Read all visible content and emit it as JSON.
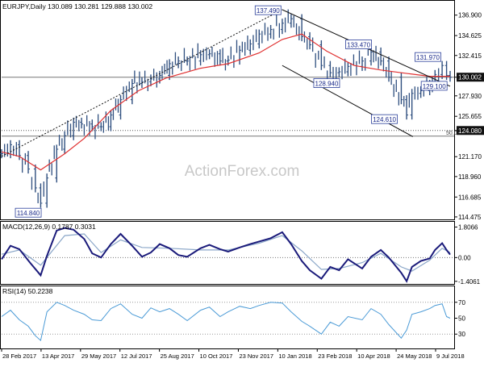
{
  "header": {
    "symbol_line": "EURJPY,Daily  130.089 130.281 129.888 130.002",
    "watermark": "ActionForex.com"
  },
  "colors": {
    "background": "#ffffff",
    "bar": "#2f4f7f",
    "ma": "#e03030",
    "macd_main": "#1a1a7a",
    "macd_signal": "#8aa6c8",
    "rsi": "#4a9ad6",
    "trendline": "#111111",
    "price_tag_bg": "#111111",
    "watermark": "#c8c8c8"
  },
  "chart_data": [
    {
      "type": "line",
      "panel": "price",
      "title": "EURJPY,Daily",
      "ohlc_last": {
        "open": 130.089,
        "high": 130.281,
        "low": 129.888,
        "close": 130.002
      },
      "y_ticks": [
        136.9,
        134.625,
        132.415,
        130.002,
        127.93,
        125.655,
        124.08,
        121.17,
        118.96,
        116.685,
        114.475
      ],
      "y_tick_labels": [
        "136.900",
        "134.625",
        "132.415",
        "130.002",
        "127.930",
        "125.655",
        "124.080",
        "121.170",
        "118.960",
        "116.685",
        "114.475"
      ],
      "ylim": [
        114.2,
        138.4
      ],
      "current_price": 130.002,
      "horizontal_levels": [
        {
          "value": 130.002,
          "label": "130.002",
          "style": "solid"
        },
        {
          "value": 124.08,
          "label": "124.080",
          "style": "dotted"
        },
        {
          "value": 123.45,
          "label": "50.0",
          "style": "solid"
        }
      ],
      "annotations": [
        "137.490",
        "133.470",
        "131.970",
        "128.940",
        "129.100",
        "124.610",
        "114.840"
      ],
      "series": [
        {
          "type": "ohlc_bars",
          "x": [
            "2017-02-28",
            "2017-03-10",
            "2017-03-20",
            "2017-03-30",
            "2017-04-07",
            "2017-04-13",
            "2017-04-20",
            "2017-05-01",
            "2017-05-10",
            "2017-05-20",
            "2017-05-29",
            "2017-06-10",
            "2017-06-20",
            "2017-07-01",
            "2017-07-12",
            "2017-07-25",
            "2017-08-05",
            "2017-08-15",
            "2017-08-25",
            "2017-09-05",
            "2017-09-15",
            "2017-09-25",
            "2017-10-10",
            "2017-10-20",
            "2017-11-01",
            "2017-11-10",
            "2017-11-23",
            "2017-12-05",
            "2017-12-15",
            "2017-12-28",
            "2018-01-10",
            "2018-01-20",
            "2018-02-01",
            "2018-02-10",
            "2018-02-23",
            "2018-03-05",
            "2018-03-15",
            "2018-03-25",
            "2018-04-10",
            "2018-04-20",
            "2018-05-01",
            "2018-05-10",
            "2018-05-24",
            "2018-05-30",
            "2018-06-05",
            "2018-06-15",
            "2018-06-25",
            "2018-07-01",
            "2018-07-09",
            "2018-07-14",
            "2018-07-18"
          ],
          "values": [
            121.5,
            122.5,
            121.3,
            119.8,
            117.7,
            116.0,
            118.8,
            122.0,
            123.5,
            125.0,
            124.8,
            124.5,
            124.5,
            125.8,
            127.5,
            129.3,
            129.5,
            129.8,
            130.2,
            131.5,
            131.8,
            131.8,
            132.5,
            132.6,
            131.8,
            131.9,
            133.0,
            133.7,
            134.8,
            135.3,
            136.0,
            136.5,
            134.5,
            133.6,
            131.3,
            130.5,
            130.6,
            131.2,
            131.8,
            132.8,
            131.8,
            130.0,
            127.5,
            125.8,
            128.2,
            128.5,
            129.2,
            130.3,
            131.3,
            130.2,
            130.0
          ]
        },
        {
          "name": "MA",
          "type": "line",
          "x": [
            "2017-02-28",
            "2017-03-20",
            "2017-04-13",
            "2017-05-10",
            "2017-06-01",
            "2017-07-01",
            "2017-08-01",
            "2017-09-01",
            "2017-10-10",
            "2017-11-10",
            "2017-12-15",
            "2018-01-10",
            "2018-02-01",
            "2018-03-01",
            "2018-04-01",
            "2018-05-01",
            "2018-06-01",
            "2018-06-25",
            "2018-07-18"
          ],
          "values": [
            121.7,
            121.2,
            119.7,
            121.5,
            123.2,
            126.3,
            128.5,
            129.9,
            131.0,
            131.5,
            132.7,
            134.2,
            134.8,
            132.9,
            131.3,
            130.8,
            130.4,
            130.1,
            130.1
          ]
        },
        {
          "name": "trend_line_rising",
          "type": "line",
          "x": [
            "2017-02-28",
            "2018-01-10"
          ],
          "values": [
            121.2,
            137.5
          ]
        },
        {
          "name": "channel_upper",
          "type": "line",
          "x": [
            "2018-01-10",
            "2018-07-18"
          ],
          "values": [
            137.5,
            129.0
          ]
        },
        {
          "name": "channel_lower",
          "type": "line",
          "x": [
            "2018-01-10",
            "2018-06-06"
          ],
          "values": [
            131.3,
            123.4
          ]
        }
      ]
    },
    {
      "type": "line",
      "panel": "macd",
      "title": "MACD(12,26,9) 0.1787 0.3031",
      "y_ticks": [
        1.8066,
        0.0,
        -1.4061
      ],
      "y_tick_labels": [
        "1.8066",
        "0.00",
        "-1.4061"
      ],
      "ylim": [
        -1.56,
        2.07
      ],
      "series": [
        {
          "name": "MACD",
          "x": [
            "2017-02-28",
            "2017-03-10",
            "2017-03-20",
            "2017-04-01",
            "2017-04-13",
            "2017-04-20",
            "2017-05-01",
            "2017-05-10",
            "2017-05-20",
            "2017-06-01",
            "2017-06-10",
            "2017-06-20",
            "2017-07-01",
            "2017-07-12",
            "2017-07-25",
            "2017-08-05",
            "2017-08-15",
            "2017-08-25",
            "2017-09-05",
            "2017-09-15",
            "2017-09-25",
            "2017-10-10",
            "2017-10-20",
            "2017-11-01",
            "2017-11-10",
            "2017-11-23",
            "2017-12-05",
            "2017-12-15",
            "2017-12-28",
            "2018-01-10",
            "2018-01-20",
            "2018-02-01",
            "2018-02-10",
            "2018-02-23",
            "2018-03-05",
            "2018-03-15",
            "2018-03-25",
            "2018-04-10",
            "2018-04-20",
            "2018-05-01",
            "2018-05-10",
            "2018-05-24",
            "2018-05-30",
            "2018-06-05",
            "2018-06-15",
            "2018-06-25",
            "2018-07-01",
            "2018-07-09",
            "2018-07-14",
            "2018-07-18"
          ],
          "values": [
            -0.1,
            0.7,
            0.5,
            -0.3,
            -1.05,
            0.1,
            1.6,
            1.75,
            1.65,
            1.1,
            0.25,
            0.0,
            0.8,
            1.4,
            0.7,
            0.05,
            0.3,
            0.8,
            0.55,
            0.15,
            0.05,
            0.55,
            0.75,
            0.5,
            0.35,
            0.6,
            0.8,
            0.95,
            1.15,
            1.5,
            0.8,
            -0.2,
            -0.75,
            -1.25,
            -0.55,
            -0.75,
            -0.1,
            -0.65,
            0.05,
            0.45,
            0.0,
            -0.9,
            -1.4,
            -0.55,
            -0.2,
            -0.05,
            0.45,
            0.85,
            0.45,
            0.18
          ]
        },
        {
          "name": "Signal",
          "x": [
            "2017-02-28",
            "2017-03-20",
            "2017-04-13",
            "2017-05-10",
            "2017-06-01",
            "2017-06-20",
            "2017-07-12",
            "2017-08-05",
            "2017-09-05",
            "2017-10-10",
            "2017-11-10",
            "2017-12-15",
            "2018-01-10",
            "2018-02-01",
            "2018-02-23",
            "2018-03-15",
            "2018-04-10",
            "2018-05-01",
            "2018-05-24",
            "2018-06-05",
            "2018-06-25",
            "2018-07-09",
            "2018-07-18"
          ],
          "values": [
            0.2,
            0.45,
            -0.45,
            1.3,
            1.4,
            0.3,
            1.05,
            0.6,
            0.55,
            0.45,
            0.45,
            0.85,
            1.3,
            0.4,
            -0.7,
            -0.65,
            -0.3,
            0.25,
            -0.55,
            -0.8,
            -0.15,
            0.55,
            0.3
          ]
        }
      ]
    },
    {
      "type": "line",
      "panel": "rsi",
      "title": "RSI(14) 50.2238",
      "y_ticks": [
        70,
        50,
        30
      ],
      "y_tick_labels": [
        "70",
        "50",
        "30"
      ],
      "ylim": [
        12,
        89
      ],
      "series": [
        {
          "name": "RSI",
          "x": [
            "2017-02-28",
            "2017-03-10",
            "2017-03-20",
            "2017-03-30",
            "2017-04-07",
            "2017-04-13",
            "2017-04-20",
            "2017-05-01",
            "2017-05-10",
            "2017-05-20",
            "2017-06-01",
            "2017-06-10",
            "2017-06-20",
            "2017-07-01",
            "2017-07-12",
            "2017-07-25",
            "2017-08-05",
            "2017-08-15",
            "2017-08-25",
            "2017-09-05",
            "2017-09-15",
            "2017-09-25",
            "2017-10-10",
            "2017-10-20",
            "2017-11-01",
            "2017-11-10",
            "2017-11-23",
            "2017-12-05",
            "2017-12-15",
            "2017-12-28",
            "2018-01-10",
            "2018-01-20",
            "2018-02-01",
            "2018-02-10",
            "2018-02-23",
            "2018-03-05",
            "2018-03-15",
            "2018-03-25",
            "2018-04-10",
            "2018-04-20",
            "2018-05-01",
            "2018-05-10",
            "2018-05-24",
            "2018-05-30",
            "2018-06-05",
            "2018-06-15",
            "2018-06-25",
            "2018-07-01",
            "2018-07-09",
            "2018-07-14",
            "2018-07-18"
          ],
          "values": [
            52,
            60,
            48,
            40,
            28,
            22,
            58,
            70,
            66,
            60,
            55,
            48,
            47,
            62,
            68,
            55,
            50,
            63,
            58,
            62,
            55,
            47,
            60,
            64,
            52,
            58,
            65,
            62,
            66,
            70,
            69,
            58,
            46,
            40,
            30,
            45,
            40,
            52,
            48,
            62,
            55,
            42,
            25,
            35,
            55,
            58,
            62,
            66,
            68,
            52,
            50
          ]
        }
      ]
    }
  ],
  "x_axis": {
    "labels": [
      "28 Feb 2017",
      "13 Apr 2017",
      "29 May 2017",
      "12 Jul 2017",
      "25 Aug 2017",
      "10 Oct 2017",
      "23 Nov 2017",
      "10 Jan 2018",
      "23 Feb 2018",
      "10 Apr 2018",
      "24 May 2018",
      "9 Jul 2018"
    ]
  }
}
